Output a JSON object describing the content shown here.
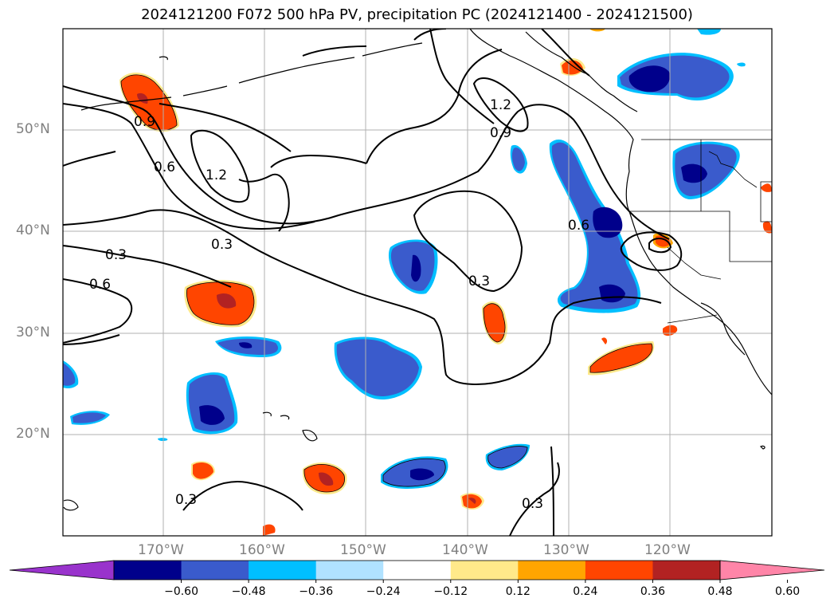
{
  "title": "2024121200 F072 500 hPa PV, precipitation PC (2024121400 - 2024121500)",
  "lat_labels": [
    "50°N",
    "40°N",
    "30°N",
    "20°N"
  ],
  "lon_labels": [
    "170°W",
    "160°W",
    "150°W",
    "140°W",
    "130°W",
    "120°W"
  ],
  "contour_labels": [
    "0.9",
    "0.6",
    "1.2",
    "0.3",
    "0.3",
    "0.6",
    "1.2",
    "0.9",
    "0.6",
    "0.3",
    "0.3",
    "0.3"
  ],
  "colorbar": {
    "ticks": [
      "−0.60",
      "−0.48",
      "−0.36",
      "−0.24",
      "−0.12",
      "0.12",
      "0.24",
      "0.36",
      "0.48",
      "0.60"
    ],
    "colors": [
      "#9933cc",
      "#00008b",
      "#3a5bcc",
      "#00bfff",
      "#b0e2ff",
      "#ffffff",
      "#ffe98a",
      "#ffa500",
      "#ff4500",
      "#b22222",
      "#ff85a8"
    ]
  }
}
